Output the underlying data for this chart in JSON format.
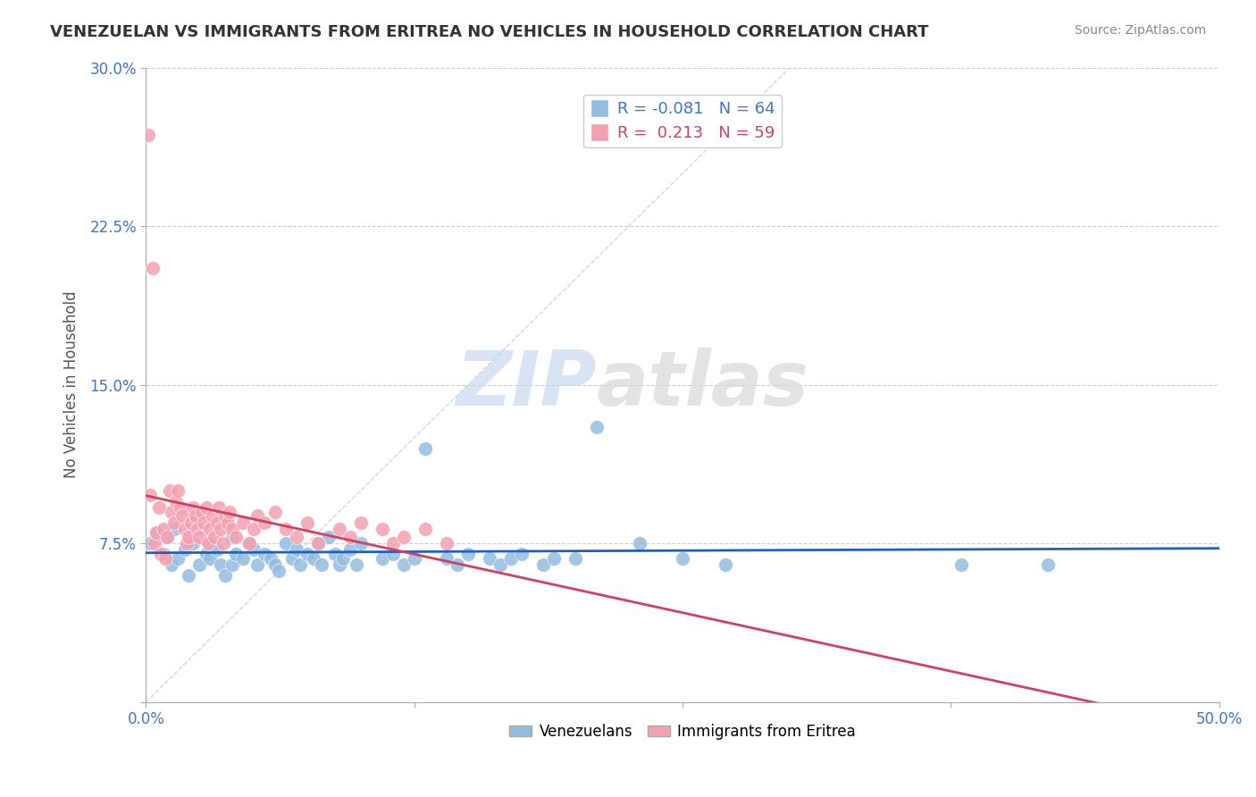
{
  "title": "VENEZUELAN VS IMMIGRANTS FROM ERITREA NO VEHICLES IN HOUSEHOLD CORRELATION CHART",
  "source": "Source: ZipAtlas.com",
  "ylabel": "No Vehicles in Household",
  "xlim": [
    0.0,
    0.5
  ],
  "ylim": [
    0.0,
    0.3
  ],
  "xticks": [
    0.0,
    0.125,
    0.25,
    0.375,
    0.5
  ],
  "xtick_labels": [
    "0.0%",
    "",
    "",
    "",
    "50.0%"
  ],
  "yticks": [
    0.0,
    0.075,
    0.15,
    0.225,
    0.3
  ],
  "ytick_labels": [
    "",
    "7.5%",
    "15.0%",
    "22.5%",
    "30.0%"
  ],
  "venezuelan_R": -0.081,
  "venezuelan_N": 64,
  "eritrea_R": 0.213,
  "eritrea_N": 59,
  "blue_color": "#92bce0",
  "pink_color": "#f4a0b0",
  "blue_line_color": "#2060c0",
  "pink_line_color": "#d04060",
  "watermark_zip": "ZIP",
  "watermark_atlas": "atlas",
  "legend_fontsize": 13,
  "title_fontsize": 13,
  "venezuelan_x": [
    0.002,
    0.005,
    0.008,
    0.01,
    0.012,
    0.013,
    0.015,
    0.018,
    0.02,
    0.022,
    0.025,
    0.028,
    0.03,
    0.03,
    0.033,
    0.035,
    0.037,
    0.04,
    0.04,
    0.042,
    0.045,
    0.048,
    0.05,
    0.052,
    0.055,
    0.058,
    0.06,
    0.062,
    0.065,
    0.068,
    0.07,
    0.072,
    0.075,
    0.078,
    0.08,
    0.082,
    0.085,
    0.088,
    0.09,
    0.092,
    0.095,
    0.098,
    0.1,
    0.11,
    0.115,
    0.12,
    0.125,
    0.13,
    0.14,
    0.145,
    0.15,
    0.16,
    0.165,
    0.17,
    0.175,
    0.185,
    0.19,
    0.2,
    0.21,
    0.23,
    0.25,
    0.27,
    0.38,
    0.42
  ],
  "venezuelan_y": [
    0.075,
    0.08,
    0.07,
    0.078,
    0.065,
    0.082,
    0.068,
    0.072,
    0.06,
    0.075,
    0.065,
    0.07,
    0.068,
    0.075,
    0.072,
    0.065,
    0.06,
    0.078,
    0.065,
    0.07,
    0.068,
    0.075,
    0.072,
    0.065,
    0.07,
    0.068,
    0.065,
    0.062,
    0.075,
    0.068,
    0.072,
    0.065,
    0.07,
    0.068,
    0.075,
    0.065,
    0.078,
    0.07,
    0.065,
    0.068,
    0.072,
    0.065,
    0.075,
    0.068,
    0.07,
    0.065,
    0.068,
    0.12,
    0.068,
    0.065,
    0.07,
    0.068,
    0.065,
    0.068,
    0.07,
    0.065,
    0.068,
    0.068,
    0.13,
    0.075,
    0.068,
    0.065,
    0.065,
    0.065
  ],
  "eritrea_x": [
    0.001,
    0.002,
    0.003,
    0.004,
    0.005,
    0.006,
    0.007,
    0.008,
    0.009,
    0.01,
    0.011,
    0.012,
    0.013,
    0.014,
    0.015,
    0.016,
    0.017,
    0.018,
    0.019,
    0.02,
    0.021,
    0.022,
    0.023,
    0.024,
    0.025,
    0.026,
    0.027,
    0.028,
    0.029,
    0.03,
    0.031,
    0.032,
    0.033,
    0.034,
    0.035,
    0.036,
    0.037,
    0.038,
    0.039,
    0.04,
    0.042,
    0.045,
    0.048,
    0.05,
    0.052,
    0.055,
    0.06,
    0.065,
    0.07,
    0.075,
    0.08,
    0.09,
    0.095,
    0.1,
    0.11,
    0.115,
    0.12,
    0.13,
    0.14
  ],
  "eritrea_y": [
    0.268,
    0.098,
    0.205,
    0.075,
    0.08,
    0.092,
    0.07,
    0.082,
    0.068,
    0.078,
    0.1,
    0.09,
    0.085,
    0.095,
    0.1,
    0.092,
    0.088,
    0.082,
    0.075,
    0.078,
    0.085,
    0.092,
    0.088,
    0.082,
    0.078,
    0.09,
    0.085,
    0.092,
    0.075,
    0.082,
    0.088,
    0.078,
    0.085,
    0.092,
    0.082,
    0.075,
    0.088,
    0.085,
    0.09,
    0.082,
    0.078,
    0.085,
    0.075,
    0.082,
    0.088,
    0.085,
    0.09,
    0.082,
    0.078,
    0.085,
    0.075,
    0.082,
    0.078,
    0.085,
    0.082,
    0.075,
    0.078,
    0.082,
    0.075
  ]
}
